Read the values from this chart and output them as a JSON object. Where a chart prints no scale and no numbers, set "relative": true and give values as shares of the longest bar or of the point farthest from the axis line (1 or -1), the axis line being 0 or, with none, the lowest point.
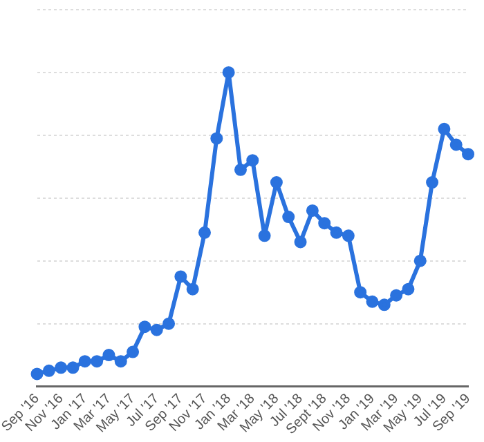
{
  "chart_data": {
    "type": "line",
    "relative": true,
    "grid": "y",
    "marker": "circle",
    "line_style": "solid",
    "legend": false,
    "categories": [
      "Sep '16",
      null,
      "Nov '16",
      null,
      "Jan '17",
      null,
      "Mar '17",
      null,
      "May '17",
      null,
      "Jul '17",
      null,
      "Sep '17",
      null,
      "Nov '17",
      null,
      "Jan '18",
      null,
      "Mar '18",
      null,
      "May '18",
      null,
      "Jul '18",
      null,
      "Sept '18",
      null,
      "Nov '18",
      null,
      "Jan '19",
      null,
      "Mar '19",
      null,
      "May '19",
      null,
      "Jul '19",
      null,
      "Sep '19"
    ],
    "series": [
      {
        "color": "#2a72de",
        "values": [
          0.04,
          0.05,
          0.06,
          0.06,
          0.08,
          0.08,
          0.1,
          0.08,
          0.11,
          0.19,
          0.18,
          0.2,
          0.35,
          0.31,
          0.49,
          0.79,
          1,
          0.69,
          0.72,
          0.48,
          0.65,
          0.54,
          0.46,
          0.56,
          0.52,
          0.49,
          0.48,
          0.3,
          0.27,
          0.26,
          0.29,
          0.31,
          0.4,
          0.65,
          0.82,
          0.77,
          0.74
        ]
      }
    ]
  }
}
